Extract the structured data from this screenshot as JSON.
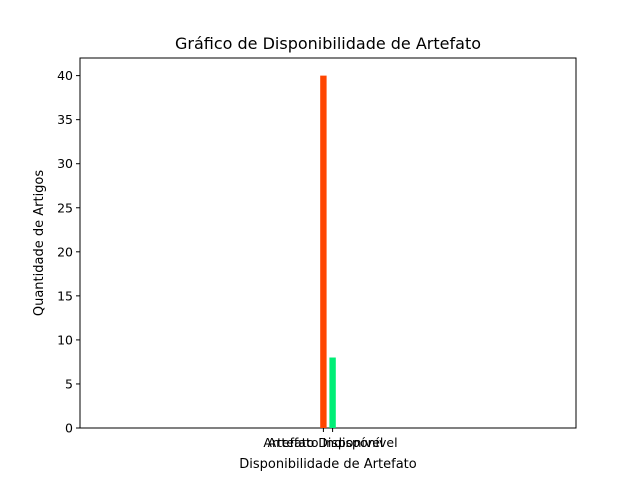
{
  "chart_data": {
    "type": "bar",
    "title": "Gráfico de Disponibilidade de Artefato",
    "xlabel": "Disponibilidade de Artefato",
    "ylabel": "Quantidade de Artigos",
    "categories": [
      "Artefato Disponível",
      "Artefato Indisponível"
    ],
    "values": [
      40,
      8
    ],
    "colors": [
      "#ff4500",
      "#00ee76"
    ],
    "ylim": [
      0,
      42
    ],
    "yticks": [
      0,
      5,
      10,
      15,
      20,
      25,
      30,
      35,
      40
    ],
    "grid": false
  }
}
